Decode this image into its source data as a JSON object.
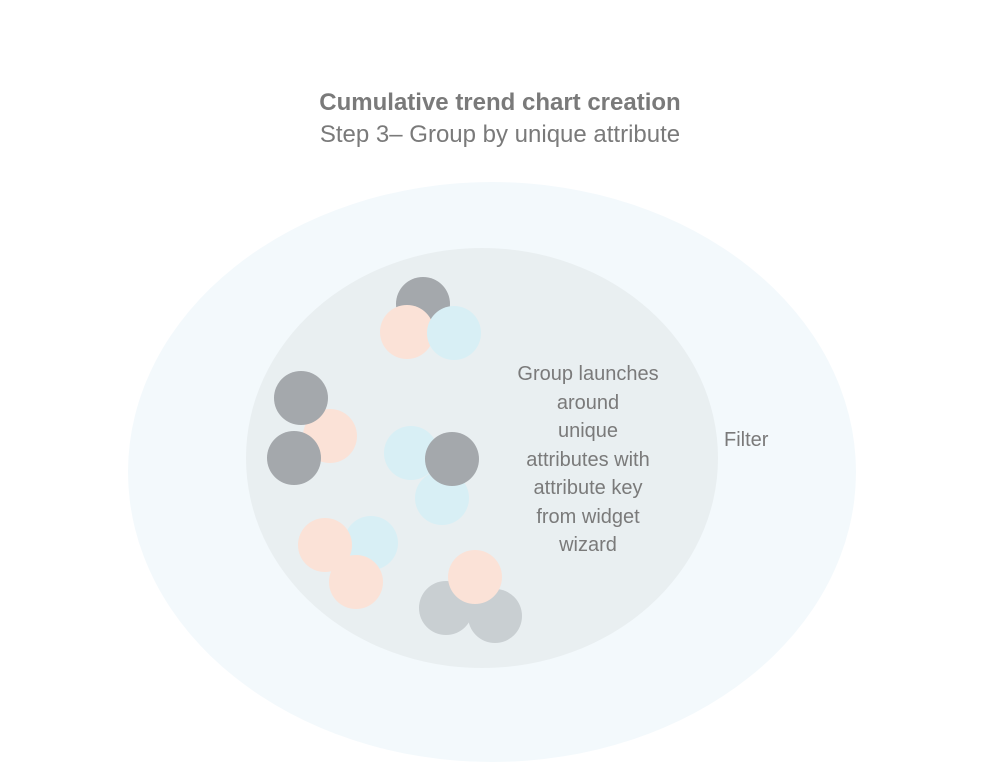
{
  "header": {
    "title": "Cumulative trend chart creation",
    "subtitle": "Step 3–  Group by unique attribute"
  },
  "diagram": {
    "outer_label": "Filter",
    "inner_label_lines": [
      "Group launches",
      "around",
      "unique",
      "attributes with",
      "attribute key",
      "from widget",
      "wizard"
    ]
  },
  "colors": {
    "outer_ring": "#f3f9fc",
    "inner_circle": "#e9eff1",
    "dot_dark_gray": "#a4a8ac",
    "dot_light_gray": "#c9cfd2",
    "dot_peach": "#fbe2d7",
    "dot_light_blue": "#d8eff5",
    "text": "#7a7a7a"
  }
}
